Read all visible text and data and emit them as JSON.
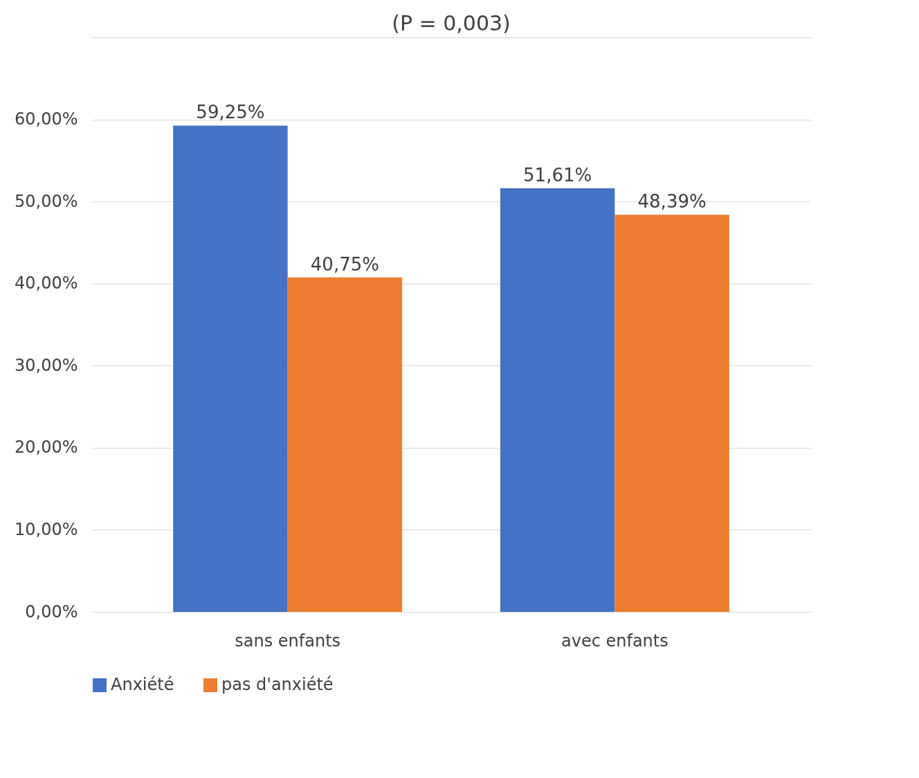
{
  "chart_data": {
    "type": "bar",
    "categories": [
      "sans enfants",
      "avec enfants"
    ],
    "series": [
      {
        "name": "Anxiété",
        "color": "#4472c4",
        "values": [
          59.25,
          51.61
        ],
        "value_labels": [
          "59,25%",
          "51,61%"
        ]
      },
      {
        "name": "pas d'anxiété",
        "color": "#ed7d31",
        "values": [
          40.75,
          48.39
        ],
        "value_labels": [
          "40,75%",
          "48,39%"
        ]
      }
    ],
    "ylim": [
      0,
      70
    ],
    "yticks": [
      {
        "value": 0,
        "label": "0,00%"
      },
      {
        "value": 10,
        "label": "10,00%"
      },
      {
        "value": 20,
        "label": "20,00%"
      },
      {
        "value": 30,
        "label": "30,00%"
      },
      {
        "value": 40,
        "label": "40,00%"
      },
      {
        "value": 50,
        "label": "50,00%"
      },
      {
        "value": 60,
        "label": "60,00%"
      },
      {
        "value": 70,
        "label": null
      }
    ],
    "annotations": [
      "(P = 0,003)"
    ],
    "grid": "y",
    "legend": "bottom"
  }
}
